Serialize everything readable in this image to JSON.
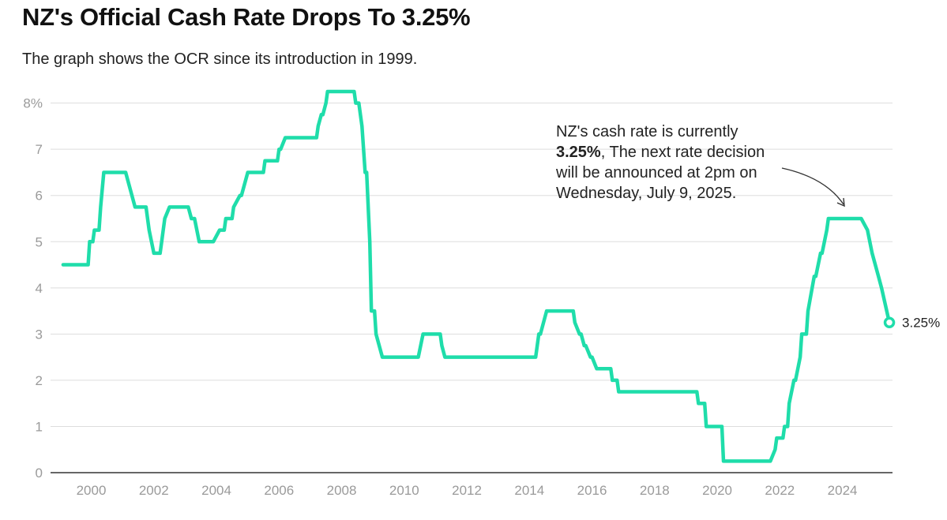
{
  "header": {
    "title": "NZ's Official Cash Rate Drops To 3.25%",
    "subtitle": "The graph shows the OCR since its introduction in 1999."
  },
  "annotation": {
    "line1": "NZ's cash rate is currently",
    "bold": "3.25%",
    "line2": ", The next rate decision will be announced at 2pm on Wednesday, July 9, 2025."
  },
  "end_label": "3.25%",
  "colors": {
    "line": "#1fddaa",
    "grid": "#dddddd",
    "axis": "#333333",
    "tick_text": "#9a9a9a"
  },
  "chart_data": {
    "type": "line",
    "title": "NZ's Official Cash Rate Drops To 3.25%",
    "subtitle": "The graph shows the OCR since its introduction in 1999.",
    "xlabel": "",
    "ylabel": "",
    "xlim": [
      1998.7,
      2025.6
    ],
    "ylim": [
      0,
      8.25
    ],
    "x_ticks": [
      2000,
      2002,
      2004,
      2006,
      2008,
      2010,
      2012,
      2014,
      2016,
      2018,
      2020,
      2022,
      2024
    ],
    "x_tick_labels": [
      "2000",
      "2002",
      "2004",
      "2006",
      "2008",
      "2010",
      "2012",
      "2014",
      "2016",
      "2018",
      "2020",
      "2022",
      "2024"
    ],
    "y_ticks": [
      0,
      1,
      2,
      3,
      4,
      5,
      6,
      7,
      8
    ],
    "y_tick_labels": [
      "0",
      "1",
      "2",
      "3",
      "4",
      "5",
      "6",
      "7",
      "8%"
    ],
    "grid": true,
    "series": [
      {
        "name": "",
        "x": [
          1999.1,
          1999.7,
          1999.75,
          1999.9,
          1999.95,
          2000.05,
          2000.1,
          2000.25,
          2000.3,
          2000.4,
          2001.1,
          2001.4,
          2001.7,
          2001.75,
          2001.85,
          2002.0,
          2002.2,
          2002.25,
          2002.35,
          2002.5,
          2003.1,
          2003.2,
          2003.3,
          2003.45,
          2003.5,
          2003.85,
          2003.9,
          2004.1,
          2004.25,
          2004.3,
          2004.5,
          2004.55,
          2004.75,
          2004.8,
          2004.9,
          2005.0,
          2005.1,
          2005.2,
          2005.5,
          2005.55,
          2005.95,
          2006.0,
          2006.05,
          2006.2,
          2006.25,
          2007.2,
          2007.25,
          2007.35,
          2007.4,
          2007.5,
          2007.55,
          2008.4,
          2008.45,
          2008.55,
          2008.65,
          2008.75,
          2008.8,
          2008.9,
          2008.95,
          2009.05,
          2009.1,
          2009.3,
          2009.35,
          2010.35,
          2010.45,
          2010.6,
          2010.65,
          2011.15,
          2011.2,
          2011.3,
          2011.35,
          2014.15,
          2014.2,
          2014.3,
          2014.35,
          2014.55,
          2014.6,
          2015.4,
          2015.45,
          2015.6,
          2015.65,
          2015.75,
          2015.8,
          2015.95,
          2016.0,
          2016.15,
          2016.2,
          2016.6,
          2016.65,
          2016.8,
          2016.85,
          2019.35,
          2019.4,
          2019.6,
          2019.65,
          2020.15,
          2020.2,
          2021.65,
          2021.7,
          2021.85,
          2021.9,
          2022.1,
          2022.15,
          2022.25,
          2022.3,
          2022.45,
          2022.5,
          2022.65,
          2022.7,
          2022.85,
          2022.9,
          2023.1,
          2023.15,
          2023.3,
          2023.35,
          2023.5,
          2023.55,
          2024.55,
          2024.6,
          2024.8,
          2024.95,
          2025.15,
          2025.25,
          2025.5
        ],
        "y": [
          4.5,
          4.5,
          4.5,
          4.5,
          5.0,
          5.0,
          5.25,
          5.25,
          5.75,
          6.5,
          6.5,
          5.75,
          5.75,
          5.75,
          5.25,
          4.75,
          4.75,
          5.0,
          5.5,
          5.75,
          5.75,
          5.5,
          5.5,
          5.0,
          5.0,
          5.0,
          5.0,
          5.25,
          5.25,
          5.5,
          5.5,
          5.75,
          6.0,
          6.0,
          6.25,
          6.5,
          6.5,
          6.5,
          6.5,
          6.75,
          6.75,
          7.0,
          7.0,
          7.25,
          7.25,
          7.25,
          7.5,
          7.75,
          7.75,
          8.0,
          8.25,
          8.25,
          8.0,
          8.0,
          7.5,
          6.5,
          6.5,
          5.0,
          3.5,
          3.5,
          3.0,
          2.5,
          2.5,
          2.5,
          2.5,
          3.0,
          3.0,
          3.0,
          2.75,
          2.5,
          2.5,
          2.5,
          2.5,
          3.0,
          3.0,
          3.5,
          3.5,
          3.5,
          3.25,
          3.0,
          3.0,
          2.75,
          2.75,
          2.5,
          2.5,
          2.25,
          2.25,
          2.25,
          2.0,
          2.0,
          1.75,
          1.75,
          1.5,
          1.5,
          1.0,
          1.0,
          0.25,
          0.25,
          0.25,
          0.5,
          0.75,
          0.75,
          1.0,
          1.0,
          1.5,
          2.0,
          2.0,
          2.5,
          3.0,
          3.0,
          3.5,
          4.25,
          4.25,
          4.75,
          4.75,
          5.25,
          5.5,
          5.5,
          5.5,
          5.25,
          4.75,
          4.25,
          4.0,
          3.25
        ]
      }
    ]
  }
}
